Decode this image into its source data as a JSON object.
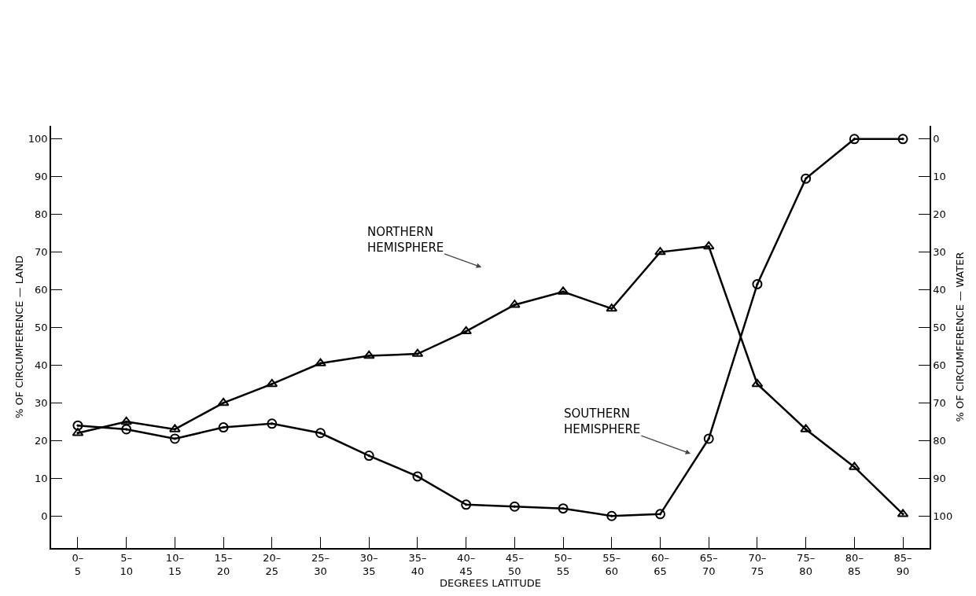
{
  "chart_data": {
    "type": "line",
    "xlabel": "DEGREES LATITUDE",
    "ylabel": "% OF CIRCUMFERENCE — LAND",
    "y2label": "% OF CIRCUMFERENCE — WATER",
    "categories": [
      "0– 5",
      "5– 10",
      "10– 15",
      "15– 20",
      "20– 25",
      "25– 30",
      "30– 35",
      "35– 40",
      "40– 45",
      "45– 50",
      "50– 55",
      "55– 60",
      "60– 65",
      "65– 70",
      "70– 75",
      "75– 80",
      "80– 85",
      "85– 90"
    ],
    "series": [
      {
        "color": "#000000",
        "marker": "triangle",
        "values": [
          22,
          25,
          23,
          30,
          35,
          40.5,
          42.5,
          43,
          49,
          56,
          59.5,
          55,
          70,
          71.5,
          35,
          23,
          13,
          0.5
        ]
      },
      {
        "color": "#000000",
        "marker": "circle",
        "values": [
          24,
          23,
          20.5,
          23.5,
          24.5,
          22,
          16,
          10.5,
          3,
          2.5,
          2,
          0,
          0.5,
          20.5,
          61.5,
          89.5,
          100,
          100
        ]
      }
    ],
    "ylim": [
      -8.5,
      103.5
    ],
    "yticks": [
      0,
      10,
      20,
      30,
      40,
      50,
      60,
      70,
      80,
      90,
      100
    ],
    "y2lim": [
      108.5,
      -3.5
    ],
    "y2ticks": [
      0,
      10,
      20,
      30,
      40,
      50,
      60,
      70,
      80,
      90,
      100
    ],
    "annotations": [
      "NORTHERN HEMISPHERE",
      "SOUTHERN HEMISPHERE"
    ],
    "grid": false,
    "line_style": "solid"
  }
}
